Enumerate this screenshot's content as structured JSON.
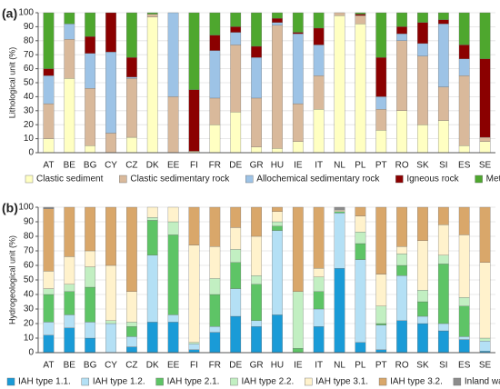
{
  "chart_data": [
    {
      "type": "stacked_bar",
      "panel_label": "(a)",
      "y_label": "Lithological unit (%)",
      "categories": [
        "AT",
        "BE",
        "BG",
        "CY",
        "CZ",
        "DK",
        "EE",
        "FI",
        "FR",
        "DE",
        "GR",
        "HU",
        "IE",
        "IT",
        "NL",
        "PL",
        "PT",
        "RO",
        "SK",
        "SI",
        "ES",
        "SE"
      ],
      "ylim": [
        0,
        100
      ],
      "yticks": [
        0,
        10,
        20,
        30,
        40,
        50,
        60,
        70,
        80,
        90,
        100
      ],
      "grid": true,
      "series": [
        {
          "name": "Clastic sediment",
          "color": "#ffffc2",
          "values": [
            10,
            53,
            5,
            0,
            11,
            97,
            0,
            1,
            20,
            29,
            4,
            3,
            8,
            31,
            98,
            92,
            16,
            30,
            20,
            23,
            5,
            8
          ]
        },
        {
          "name": "Clastic sedimentary rock",
          "color": "#d9b99b",
          "values": [
            25,
            28,
            41,
            14,
            42,
            2,
            40,
            0,
            19,
            48,
            35,
            88,
            27,
            24,
            2,
            6,
            15,
            50,
            49,
            24,
            50,
            3
          ]
        },
        {
          "name": "Allochemical sedimentary rock",
          "color": "#9dc3e6",
          "values": [
            20,
            11,
            25,
            58,
            1,
            0,
            60,
            0,
            34,
            9,
            29,
            2,
            50,
            22,
            0,
            0,
            9,
            5,
            9,
            45,
            12,
            0
          ]
        },
        {
          "name": "Igneous rock",
          "color": "#8b0000",
          "values": [
            5,
            0,
            12,
            28,
            14,
            0,
            0,
            44,
            11,
            4,
            8,
            3,
            1,
            12,
            0,
            1,
            28,
            5,
            15,
            3,
            10,
            56
          ]
        },
        {
          "name": "Metamorphic rock",
          "color": "#4ea72e",
          "values": [
            40,
            8,
            17,
            0,
            32,
            1,
            0,
            55,
            16,
            10,
            24,
            4,
            14,
            11,
            0,
            1,
            32,
            10,
            7,
            5,
            23,
            33
          ]
        }
      ]
    },
    {
      "type": "stacked_bar",
      "panel_label": "(b)",
      "y_label": "Hydrogeological unit (%)",
      "categories": [
        "AT",
        "BE",
        "BG",
        "CY",
        "CZ",
        "DK",
        "EE",
        "FI",
        "FR",
        "DE",
        "GR",
        "HU",
        "IE",
        "IT",
        "NL",
        "PL",
        "PT",
        "RO",
        "SK",
        "SI",
        "ES",
        "SE"
      ],
      "ylim": [
        0,
        100
      ],
      "yticks": [
        0,
        10,
        20,
        30,
        40,
        50,
        60,
        70,
        80,
        90,
        100
      ],
      "grid": true,
      "series": [
        {
          "name": "IAH type 1.1.",
          "color": "#1a9bd7",
          "values": [
            12,
            17,
            10,
            0,
            4,
            21,
            21,
            2,
            14,
            25,
            18,
            26,
            0,
            18,
            58,
            7,
            2,
            22,
            20,
            15,
            9,
            1
          ]
        },
        {
          "name": "IAH type 1.2.",
          "color": "#b4e0f5",
          "values": [
            9,
            9,
            11,
            20,
            7,
            46,
            5,
            4,
            4,
            19,
            4,
            58,
            0,
            12,
            38,
            57,
            17,
            31,
            5,
            5,
            2,
            7
          ]
        },
        {
          "name": "IAH type 2.1.",
          "color": "#5ec466",
          "values": [
            19,
            16,
            24,
            0,
            7,
            24,
            55,
            0,
            22,
            18,
            25,
            3,
            3,
            12,
            1,
            11,
            1,
            7,
            10,
            41,
            21,
            0
          ]
        },
        {
          "name": "IAH type 2.2.",
          "color": "#c2efc2",
          "values": [
            4,
            5,
            14,
            2,
            3,
            2,
            9,
            1,
            11,
            9,
            6,
            3,
            39,
            10,
            0,
            8,
            12,
            8,
            8,
            6,
            6,
            2
          ]
        },
        {
          "name": "IAH type 3.1.",
          "color": "#fff2cc",
          "values": [
            12,
            19,
            11,
            38,
            21,
            7,
            10,
            67,
            22,
            15,
            27,
            7,
            0,
            6,
            1,
            11,
            22,
            5,
            34,
            21,
            43,
            52
          ]
        },
        {
          "name": "IAH type 3.2.",
          "color": "#d9a76a",
          "values": [
            43,
            34,
            30,
            40,
            58,
            0,
            0,
            26,
            27,
            14,
            20,
            3,
            58,
            42,
            0,
            6,
            46,
            27,
            23,
            12,
            19,
            38
          ]
        },
        {
          "name": "Inland water",
          "color": "#8c8c8c",
          "values": [
            1,
            0,
            0,
            0,
            0,
            0,
            0,
            0,
            0,
            0,
            0,
            0,
            0,
            0,
            2,
            0,
            0,
            0,
            0,
            0,
            0,
            0
          ]
        }
      ]
    }
  ]
}
